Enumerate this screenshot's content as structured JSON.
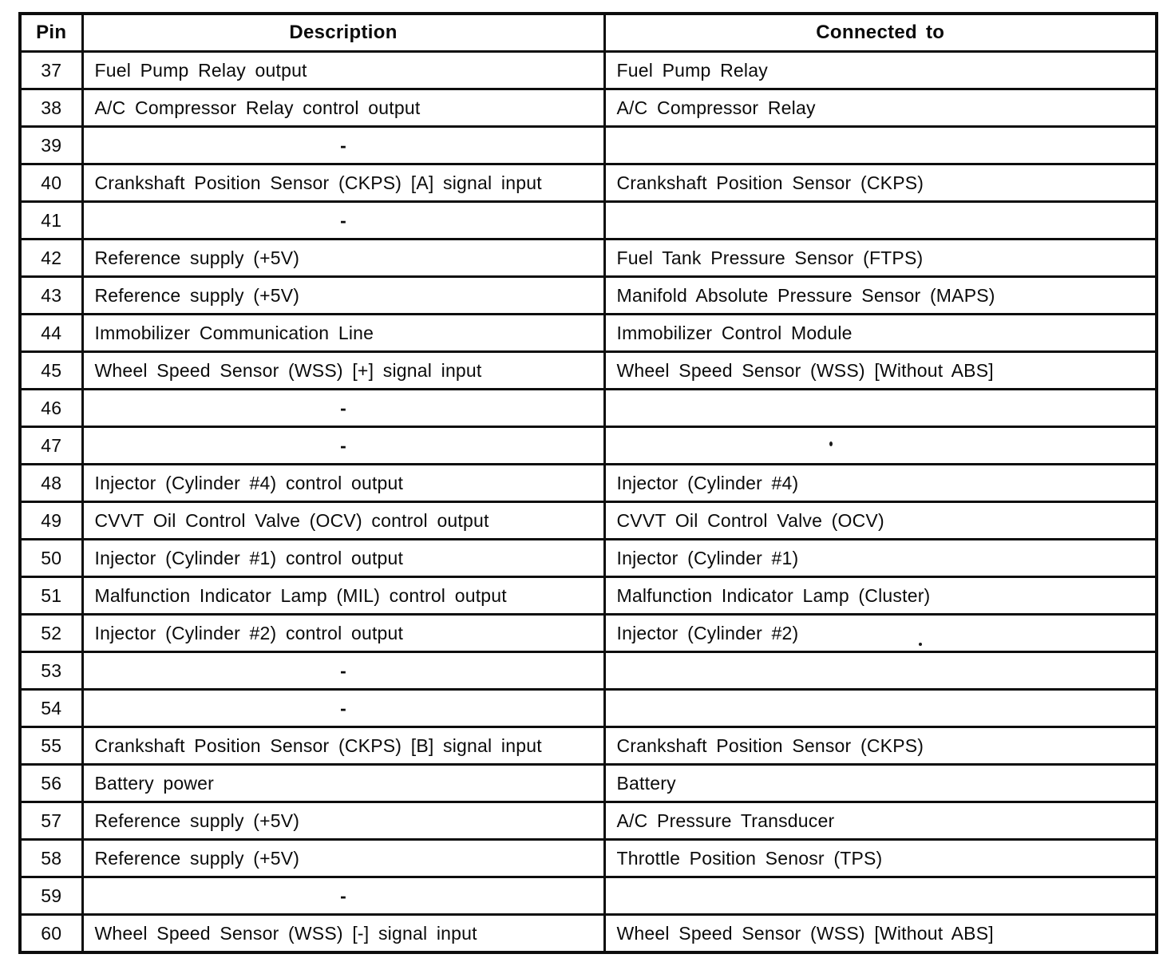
{
  "table": {
    "columns": [
      "Pin",
      "Description",
      "Connected to"
    ],
    "rows": [
      {
        "pin": "37",
        "description": "Fuel Pump Relay output",
        "connected_to": "Fuel Pump Relay"
      },
      {
        "pin": "38",
        "description": "A/C Compressor Relay control output",
        "connected_to": "A/C Compressor Relay"
      },
      {
        "pin": "39",
        "description": "-",
        "connected_to": ""
      },
      {
        "pin": "40",
        "description": "Crankshaft Position Sensor (CKPS) [A] signal input",
        "connected_to": "Crankshaft Position Sensor (CKPS)"
      },
      {
        "pin": "41",
        "description": "-",
        "connected_to": ""
      },
      {
        "pin": "42",
        "description": "Reference supply (+5V)",
        "connected_to": "Fuel Tank Pressure Sensor (FTPS)"
      },
      {
        "pin": "43",
        "description": "Reference supply (+5V)",
        "connected_to": "Manifold Absolute Pressure Sensor (MAPS)"
      },
      {
        "pin": "44",
        "description": "Immobilizer Communication Line",
        "connected_to": "Immobilizer Control Module"
      },
      {
        "pin": "45",
        "description": "Wheel Speed Sensor (WSS) [+] signal input",
        "connected_to": "Wheel Speed Sensor (WSS) [Without ABS]"
      },
      {
        "pin": "46",
        "description": "-",
        "connected_to": ""
      },
      {
        "pin": "47",
        "description": "-",
        "connected_to": ""
      },
      {
        "pin": "48",
        "description": "Injector (Cylinder #4) control output",
        "connected_to": "Injector (Cylinder #4)"
      },
      {
        "pin": "49",
        "description": "CVVT Oil Control Valve (OCV) control output",
        "connected_to": "CVVT Oil Control Valve (OCV)"
      },
      {
        "pin": "50",
        "description": "Injector (Cylinder #1) control output",
        "connected_to": "Injector (Cylinder #1)"
      },
      {
        "pin": "51",
        "description": "Malfunction Indicator Lamp (MIL) control output",
        "connected_to": "Malfunction Indicator Lamp (Cluster)"
      },
      {
        "pin": "52",
        "description": "Injector (Cylinder #2) control output",
        "connected_to": "Injector (Cylinder #2)"
      },
      {
        "pin": "53",
        "description": "-",
        "connected_to": ""
      },
      {
        "pin": "54",
        "description": "-",
        "connected_to": ""
      },
      {
        "pin": "55",
        "description": "Crankshaft Position Sensor (CKPS) [B] signal input",
        "connected_to": "Crankshaft Position Sensor (CKPS)"
      },
      {
        "pin": "56",
        "description": "Battery power",
        "connected_to": "Battery"
      },
      {
        "pin": "57",
        "description": "Reference supply (+5V)",
        "connected_to": "A/C Pressure Transducer"
      },
      {
        "pin": "58",
        "description": "Reference supply (+5V)",
        "connected_to": "Throttle Position Senosr (TPS)"
      },
      {
        "pin": "59",
        "description": "-",
        "connected_to": ""
      },
      {
        "pin": "60",
        "description": "Wheel Speed Sensor (WSS) [-] signal input",
        "connected_to": "Wheel Speed Sensor (WSS) [Without ABS]"
      }
    ]
  },
  "colors": {
    "ink": "#0d0d0d",
    "paper": "#ffffff"
  }
}
